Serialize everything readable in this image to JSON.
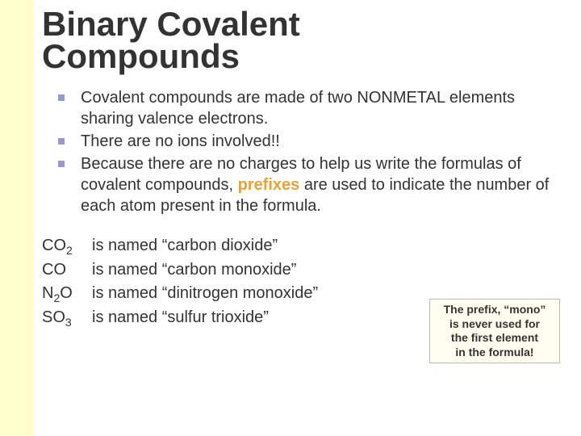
{
  "colors": {
    "sidebar_bg": "#ffffcc",
    "title_color": "#333333",
    "text_color": "#333333",
    "bullet_color": "#9999cc",
    "accent_color": "#e8a23a",
    "callout_bg": "#fffff0",
    "callout_border": "#bbbbbb"
  },
  "title": {
    "line1": "Binary Covalent",
    "line2": "Compounds"
  },
  "bullets": {
    "b1_pre": "Covalent compounds are made of two ",
    "b1_nm": "NONMETAL",
    "b1_post": " elements sharing valence electrons.",
    "b2": "There are no ions involved!!",
    "b3_pre": "Because there are no charges to help us write the formulas of covalent compounds, ",
    "b3_pref": "prefixes",
    "b3_post": " are used to indicate the number of each atom present in the formula."
  },
  "examples": {
    "e1_f": "CO",
    "e1_sub": "2",
    "e1_t": "is named “carbon dioxide”",
    "e2_f": "CO",
    "e2_sub": "",
    "e2_t": " is named “carbon monoxide”",
    "e3_f1": "N",
    "e3_sub1": "2",
    "e3_f2": "O",
    "e3_t": "is named “dinitrogen monoxide”",
    "e4_f": "SO",
    "e4_sub": "3",
    "e4_t": "is named “sulfur trioxide”"
  },
  "callout": {
    "l1": "The prefix, “mono”",
    "l2": "is never used for",
    "l3": "the first element",
    "l4": "in the formula!"
  }
}
